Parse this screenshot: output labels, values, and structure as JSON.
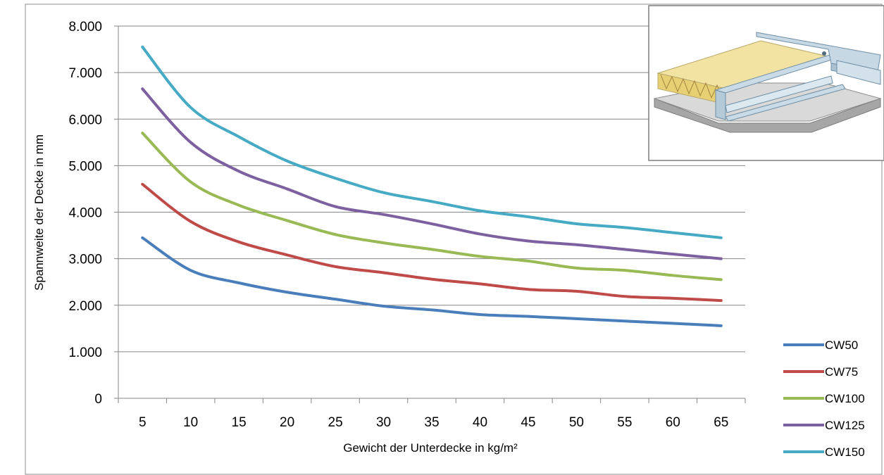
{
  "chart_data": {
    "type": "line",
    "title": "",
    "xlabel": "Gewicht der Unterdecke in kg/m²",
    "ylabel": "Spannweite der Decke in mm",
    "ylim": [
      0,
      8000
    ],
    "yticks": [
      "0",
      "1.000",
      "2.000",
      "3.000",
      "4.000",
      "5.000",
      "6.000",
      "7.000",
      "8.000"
    ],
    "categories": [
      "5",
      "10",
      "15",
      "20",
      "25",
      "30",
      "35",
      "40",
      "45",
      "50",
      "55",
      "60",
      "65"
    ],
    "grid": "horizontal",
    "legend_position": "right-bottom",
    "series": [
      {
        "name": "CW50",
        "color": "#4a7ebb",
        "values": [
          3450,
          2750,
          2480,
          2280,
          2130,
          1980,
          1900,
          1800,
          1760,
          1710,
          1660,
          1610,
          1560
        ]
      },
      {
        "name": "CW75",
        "color": "#be4b48",
        "values": [
          4600,
          3800,
          3360,
          3080,
          2830,
          2700,
          2560,
          2460,
          2340,
          2300,
          2190,
          2150,
          2100
        ]
      },
      {
        "name": "CW100",
        "color": "#98b954",
        "values": [
          5700,
          4650,
          4150,
          3820,
          3520,
          3340,
          3200,
          3050,
          2950,
          2800,
          2750,
          2640,
          2550
        ]
      },
      {
        "name": "CW125",
        "color": "#7d60a0",
        "values": [
          6650,
          5500,
          4880,
          4500,
          4120,
          3950,
          3750,
          3530,
          3380,
          3300,
          3200,
          3100,
          3000
        ]
      },
      {
        "name": "CW150",
        "color": "#46aac5",
        "values": [
          7550,
          6250,
          5620,
          5100,
          4730,
          4420,
          4230,
          4030,
          3900,
          3750,
          3670,
          3560,
          3450
        ]
      }
    ]
  },
  "inset": {
    "icon": "ceiling-profile-illustration-icon"
  }
}
